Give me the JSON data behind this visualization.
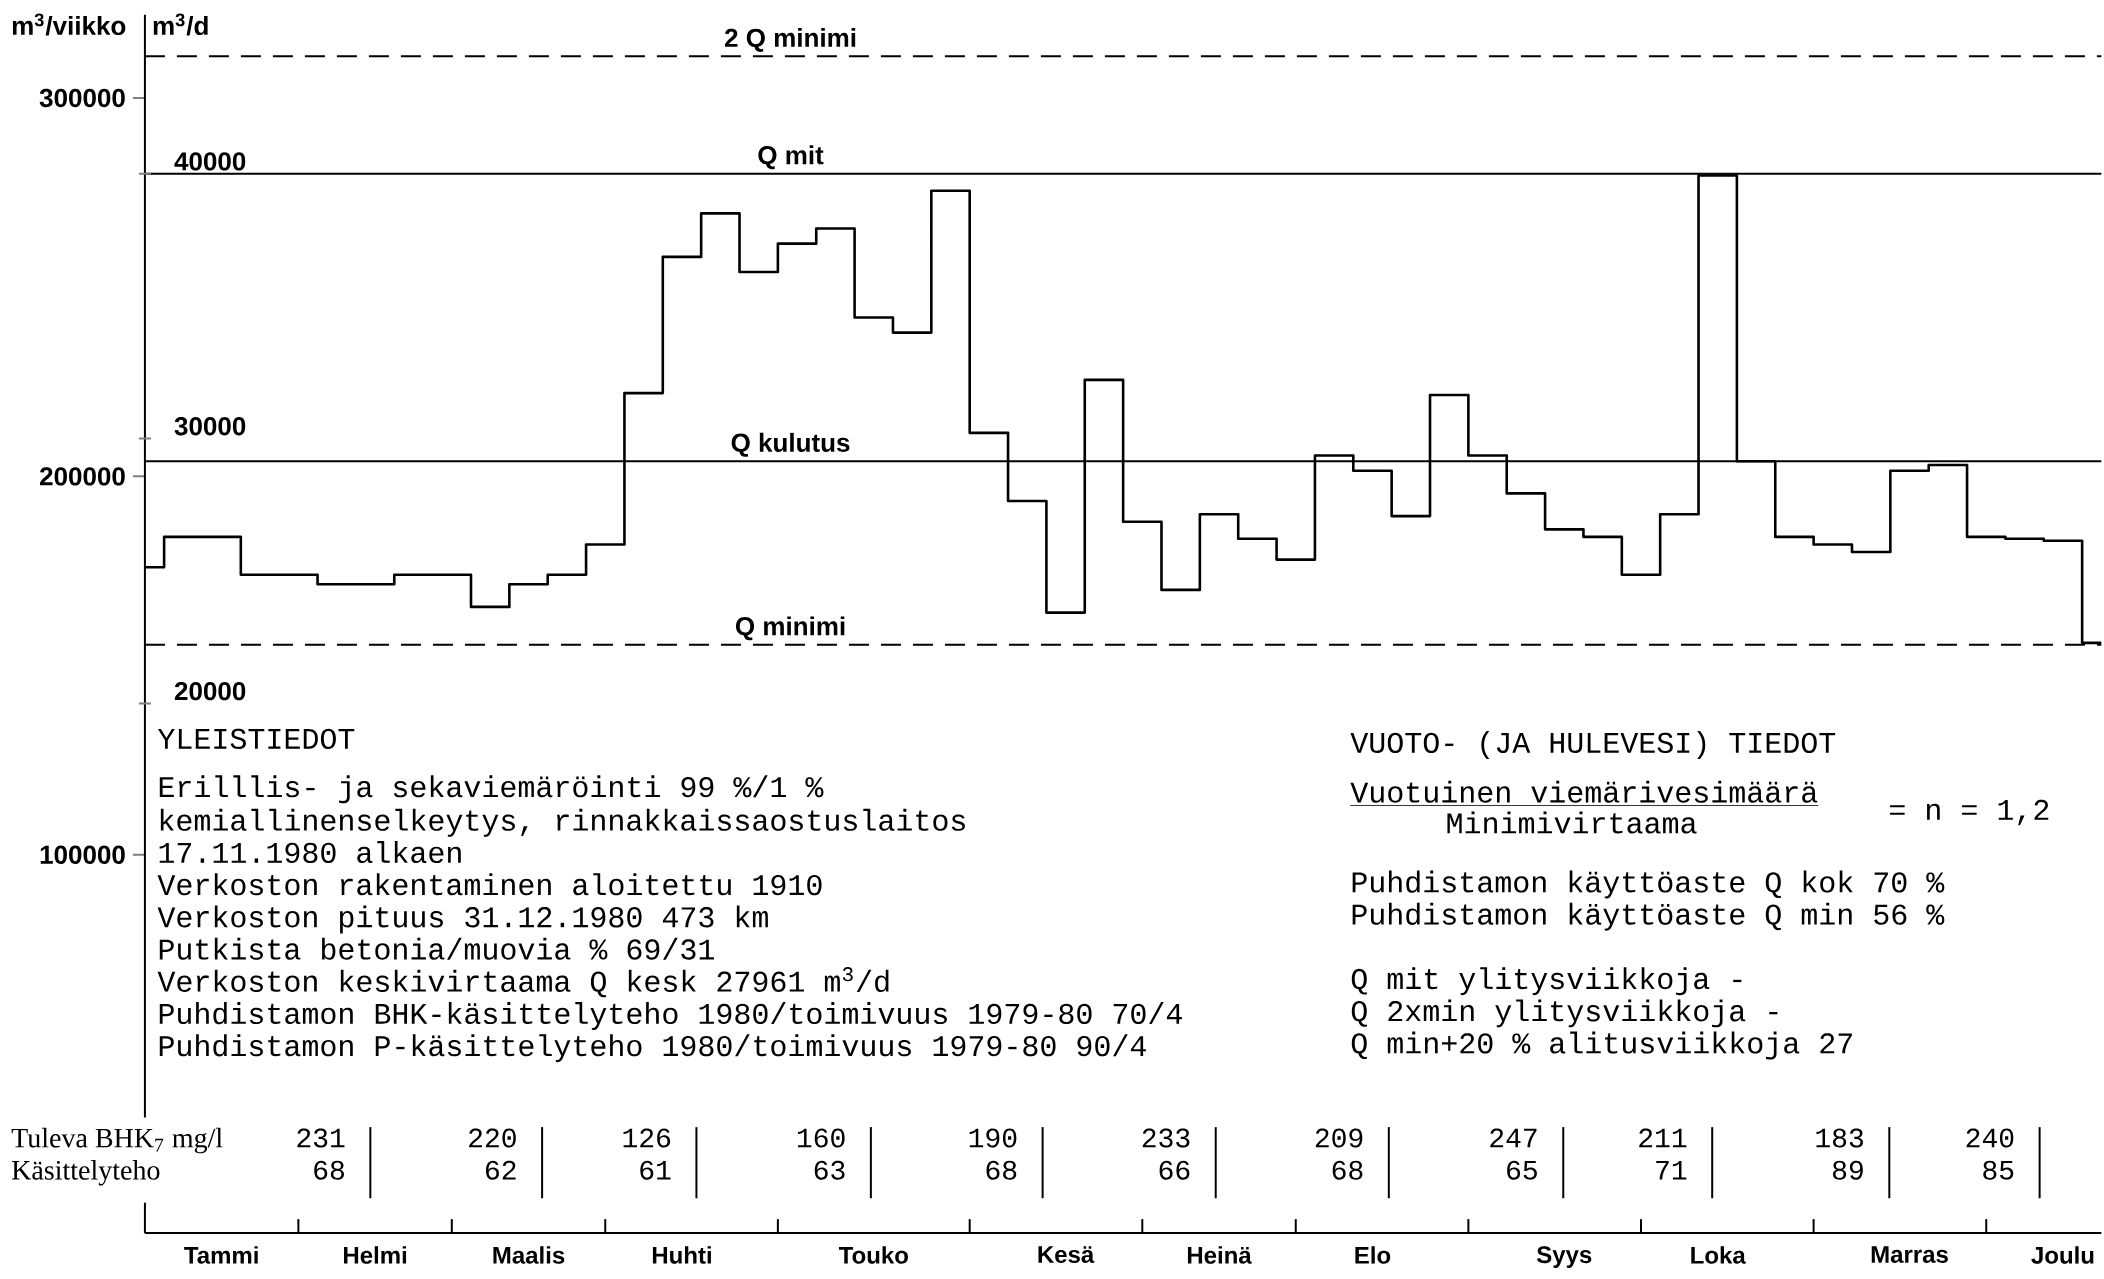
{
  "chart_data": {
    "type": "step",
    "ylabel": "m$^{3}$/viikko",
    "y2label": "m$^{3}$/d",
    "categories": [
      null,
      null,
      "Tammi",
      null,
      null,
      null,
      "Helmi",
      null,
      null,
      null,
      "Maalis",
      null,
      null,
      null,
      "Huhti",
      null,
      null,
      null,
      null,
      "Touko",
      null,
      null,
      null,
      null,
      "Kesä",
      null,
      null,
      null,
      "Heinä",
      null,
      null,
      null,
      "Elo",
      null,
      null,
      null,
      null,
      "Syys",
      null,
      null,
      null,
      "Loka",
      null,
      null,
      null,
      null,
      "Marras",
      null,
      null,
      null,
      "Joulu",
      null
    ],
    "ylim": [
      0,
      322000
    ],
    "yticks": [
      100000,
      200000,
      300000
    ],
    "y2lim": [
      0,
      46000
    ],
    "y2ticks": [
      20000,
      30000,
      40000
    ],
    "series": [
      {
        "color": "#000000",
        "values": [
          176000,
          184000,
          184000,
          174000,
          174000,
          171500,
          171500,
          174000,
          174000,
          165500,
          171500,
          174000,
          182000,
          222000,
          258000,
          269500,
          254000,
          261500,
          265500,
          242000,
          238000,
          275500,
          211500,
          193500,
          164000,
          225500,
          188000,
          170000,
          190000,
          183500,
          178000,
          205500,
          201500,
          189500,
          221500,
          205500,
          195500,
          186000,
          184000,
          174000,
          190000,
          279500,
          204000,
          184000,
          182000,
          180000,
          201500,
          203000,
          184000,
          183500,
          183000,
          156000
        ]
      }
    ],
    "ref_lines": [
      {
        "axis": "y",
        "value": 311000,
        "label": "2 Q minimi",
        "line_style": "dashed"
      },
      {
        "axis": "y",
        "value": 280000,
        "label": "Q mit",
        "line_style": "solid"
      },
      {
        "axis": "y",
        "value": 204000,
        "label": "Q kulutus",
        "line_style": "solid"
      },
      {
        "axis": "y",
        "value": 155500,
        "label": "Q minimi",
        "line_style": "dashed"
      }
    ],
    "annotations": [
      "YLEISTIEDOT",
      "Erilllis- ja sekaviemäröinti 99 %/1 %",
      "kemiallinenselkeytys, rinnakkaissaostuslaitos",
      "17.11.1980 alkaen",
      "Verkoston rakentaminen aloitettu 1910",
      "Verkoston pituus 31.12.1980  473 km",
      "Putkista betonia/muovia % 69/31",
      "Verkoston keskivirtaama Q kesk 27961 m$^{3}$/d",
      "Puhdistamon BHK-käsittelyteho 1980/toimivuus 1979-80 70/4",
      "Puhdistamon P-käsittelyteho 1980/toimivuus 1979-80 90/4",
      "VUOTO- (JA HULEVESI) TIEDOT",
      "Vuotuinen viemärivesimäärä",
      "Minimivirtaama",
      "= n = 1,2",
      "Puhdistamon käyttöaste Q kok 70 %",
      "Puhdistamon käyttöaste Q min 56 %",
      "Q mit ylitysviikkoja -",
      "Q 2xmin ylitysviikkoja -",
      "Q min+20 % alitusviikkoja 27",
      "Tuleva BHK$_{7}$ mg/l",
      "Käsittelyteho",
      "231",
      "220",
      "126",
      "160",
      "190",
      "233",
      "209",
      "247",
      "211",
      "183",
      "240",
      "68",
      "62",
      "61",
      "63",
      "68",
      "66",
      "68",
      "65",
      "71",
      "89",
      "85"
    ]
  }
}
